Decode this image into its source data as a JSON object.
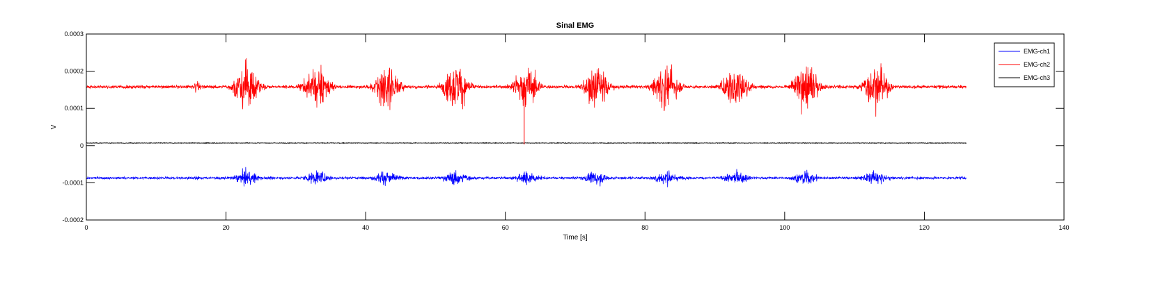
{
  "chart_data": {
    "type": "line",
    "title": "Sinal EMG",
    "xlabel": "Time [s]",
    "ylabel": "V",
    "xlim": [
      0,
      140
    ],
    "ylim": [
      -0.0002,
      0.0003
    ],
    "x_ticks": [
      0,
      20,
      40,
      60,
      80,
      100,
      120,
      140
    ],
    "x_tick_labels": [
      "0",
      "20",
      "40",
      "60",
      "80",
      "100",
      "120",
      "140"
    ],
    "y_ticks": [
      -0.0002,
      -0.0001,
      0,
      0.0001,
      0.0002,
      0.0003
    ],
    "y_tick_labels": [
      "-0.0002",
      "-0.0001",
      "0",
      "0.0001",
      "0.0002",
      "0.0003"
    ],
    "grid": false,
    "legend_position": "top-right",
    "x_end": 126,
    "bursts": [
      {
        "center": 15.8,
        "width": 0.6,
        "amp": 0.3
      },
      {
        "center": 23.0,
        "width": 2.4,
        "amp": 1.0
      },
      {
        "center": 33.0,
        "width": 2.4,
        "amp": 0.95
      },
      {
        "center": 43.0,
        "width": 2.4,
        "amp": 0.95
      },
      {
        "center": 53.0,
        "width": 2.4,
        "amp": 1.0
      },
      {
        "center": 63.0,
        "width": 2.4,
        "amp": 0.9
      },
      {
        "center": 73.0,
        "width": 2.4,
        "amp": 0.95
      },
      {
        "center": 83.0,
        "width": 2.4,
        "amp": 0.95
      },
      {
        "center": 93.0,
        "width": 2.4,
        "amp": 0.95
      },
      {
        "center": 103.0,
        "width": 2.4,
        "amp": 1.0
      },
      {
        "center": 113.0,
        "width": 2.4,
        "amp": 0.95
      }
    ],
    "series": [
      {
        "name": "EMG-ch1",
        "color": "#0000ff",
        "baseline": -8.7e-05,
        "noise": 3e-06,
        "burst_amp": 1.8e-05
      },
      {
        "name": "EMG-ch2",
        "color": "#ff0000",
        "baseline": 0.000158,
        "noise": 4e-06,
        "burst_amp": 6e-05
      },
      {
        "name": "EMG-ch3",
        "color": "#000000",
        "baseline": 7e-06,
        "noise": 8e-07,
        "burst_amp": 0
      }
    ]
  }
}
